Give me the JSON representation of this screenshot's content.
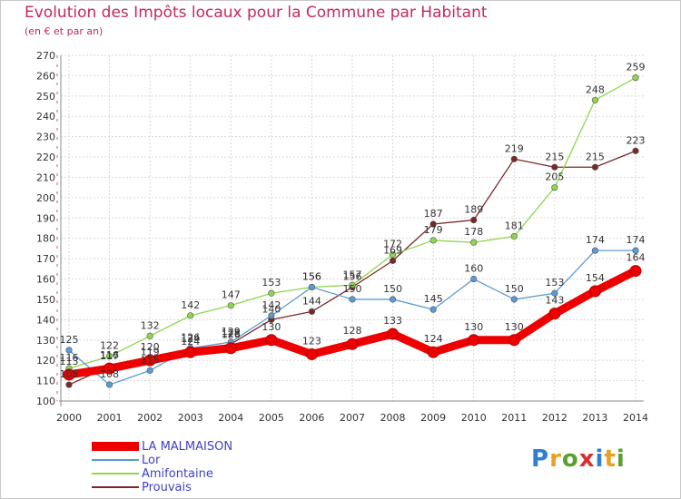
{
  "header": {
    "title": "Evolution des Impôts locaux pour la Commune par Habitant",
    "subtitle": "(en € et par an)"
  },
  "chart_data": {
    "type": "line",
    "title": "Evolution des Impôts locaux pour la Commune par Habitant",
    "subtitle": "(en € et par an)",
    "xlabel": "",
    "ylabel": "",
    "ylim": [
      100,
      270
    ],
    "yticks": [
      100,
      110,
      120,
      130,
      140,
      150,
      160,
      170,
      180,
      190,
      200,
      210,
      220,
      230,
      240,
      250,
      260,
      270
    ],
    "categories": [
      "2000",
      "2001",
      "2002",
      "2003",
      "2004",
      "2005",
      "2006",
      "2007",
      "2008",
      "2009",
      "2010",
      "2011",
      "2012",
      "2013",
      "2014"
    ],
    "grid": true,
    "legend_position": "bottom-left",
    "series": [
      {
        "name": "LA MALMAISON",
        "color": "#ee0000",
        "values": [
          113,
          116,
          120,
          124,
          126,
          130,
          123,
          128,
          133,
          124,
          130,
          130,
          143,
          154,
          164
        ]
      },
      {
        "name": "Lor",
        "color": "#5b9bd5",
        "values": [
          125,
          108,
          115,
          126,
          129,
          142,
          156,
          150,
          150,
          145,
          160,
          150,
          153,
          174,
          174
        ]
      },
      {
        "name": "Amifontaine",
        "color": "#8fd650",
        "values": [
          116,
          122,
          132,
          142,
          147,
          153,
          156,
          157,
          172,
          179,
          178,
          181,
          205,
          248,
          259
        ]
      },
      {
        "name": "Prouvais",
        "color": "#7a2828",
        "values": [
          108,
          117,
          119,
          124,
          128,
          140,
          144,
          156,
          169,
          187,
          189,
          219,
          215,
          215,
          223
        ]
      }
    ]
  },
  "legend": {
    "items": [
      "LA MALMAISON",
      "Lor",
      "Amifontaine",
      "Prouvais"
    ]
  },
  "logo": {
    "text": "Proxiti",
    "letters": [
      {
        "ch": "P",
        "color": "#2f7fd0"
      },
      {
        "ch": "r",
        "color": "#e8a020"
      },
      {
        "ch": "o",
        "color": "#5aa030"
      },
      {
        "ch": "x",
        "color": "#d83030"
      },
      {
        "ch": "i",
        "color": "#2f7fd0"
      },
      {
        "ch": "t",
        "color": "#e8a020"
      },
      {
        "ch": "i",
        "color": "#5aa030"
      }
    ]
  }
}
